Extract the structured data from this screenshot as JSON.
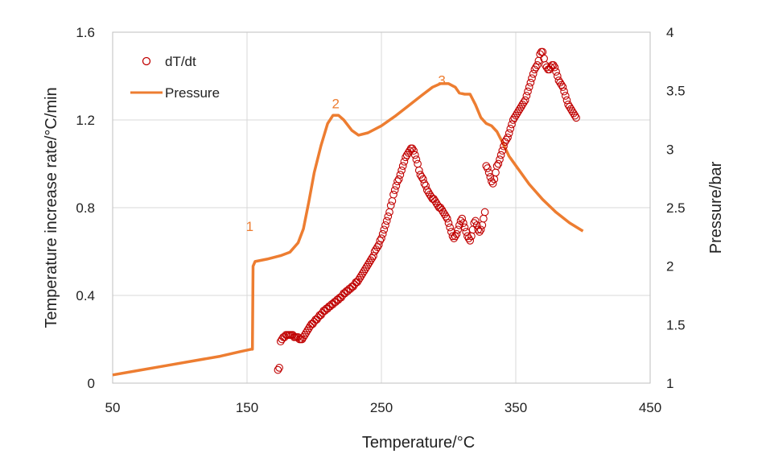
{
  "chart_data": {
    "type": "scatter",
    "xlabel": "Temperature/°C",
    "ylabel_left": "Temperature increase rate/°C/min",
    "ylabel_right": "Pressure/bar",
    "xlim": [
      50,
      450
    ],
    "ylim_left": [
      0,
      1.6
    ],
    "ylim_right": [
      1,
      4
    ],
    "x_ticks": [
      "50",
      "150",
      "250",
      "350",
      "450"
    ],
    "y_left_ticks": [
      "0",
      "0.4",
      "0.8",
      "1.2",
      "1.6"
    ],
    "y_right_ticks": [
      "1",
      "1.5",
      "2",
      "2.5",
      "3",
      "3.5",
      "4"
    ],
    "grid": true,
    "legend": "top-left",
    "colors": {
      "dTdt": "#C00000",
      "pressure": "#ED7D31"
    },
    "annotations": [
      {
        "text": "1",
        "x": 152,
        "y_right": 2.3
      },
      {
        "text": "2",
        "x": 216,
        "y_right": 3.35
      },
      {
        "text": "3",
        "x": 295,
        "y_right": 3.55
      }
    ],
    "series": [
      {
        "name": "dT/dt",
        "kind": "scatter",
        "axis": "left",
        "points": [
          [
            173,
            0.06
          ],
          [
            174,
            0.07
          ],
          [
            175,
            0.19
          ],
          [
            176,
            0.2
          ],
          [
            177,
            0.21
          ],
          [
            178,
            0.21
          ],
          [
            179,
            0.22
          ],
          [
            180,
            0.22
          ],
          [
            181,
            0.22
          ],
          [
            182,
            0.22
          ],
          [
            183,
            0.22
          ],
          [
            184,
            0.22
          ],
          [
            185,
            0.21
          ],
          [
            186,
            0.21
          ],
          [
            187,
            0.21
          ],
          [
            188,
            0.21
          ],
          [
            189,
            0.2
          ],
          [
            190,
            0.2
          ],
          [
            191,
            0.2
          ],
          [
            192,
            0.21
          ],
          [
            193,
            0.22
          ],
          [
            194,
            0.23
          ],
          [
            195,
            0.24
          ],
          [
            196,
            0.25
          ],
          [
            197,
            0.26
          ],
          [
            198,
            0.27
          ],
          [
            199,
            0.27
          ],
          [
            200,
            0.28
          ],
          [
            201,
            0.29
          ],
          [
            202,
            0.29
          ],
          [
            203,
            0.3
          ],
          [
            204,
            0.31
          ],
          [
            205,
            0.31
          ],
          [
            206,
            0.32
          ],
          [
            207,
            0.33
          ],
          [
            208,
            0.33
          ],
          [
            209,
            0.34
          ],
          [
            210,
            0.34
          ],
          [
            211,
            0.35
          ],
          [
            212,
            0.35
          ],
          [
            213,
            0.36
          ],
          [
            214,
            0.36
          ],
          [
            215,
            0.37
          ],
          [
            216,
            0.37
          ],
          [
            217,
            0.38
          ],
          [
            218,
            0.38
          ],
          [
            219,
            0.39
          ],
          [
            220,
            0.39
          ],
          [
            221,
            0.4
          ],
          [
            222,
            0.41
          ],
          [
            223,
            0.41
          ],
          [
            224,
            0.42
          ],
          [
            225,
            0.42
          ],
          [
            226,
            0.43
          ],
          [
            227,
            0.43
          ],
          [
            228,
            0.44
          ],
          [
            229,
            0.44
          ],
          [
            230,
            0.45
          ],
          [
            231,
            0.46
          ],
          [
            232,
            0.46
          ],
          [
            233,
            0.47
          ],
          [
            234,
            0.48
          ],
          [
            235,
            0.49
          ],
          [
            236,
            0.5
          ],
          [
            237,
            0.51
          ],
          [
            238,
            0.52
          ],
          [
            239,
            0.53
          ],
          [
            240,
            0.54
          ],
          [
            241,
            0.55
          ],
          [
            242,
            0.56
          ],
          [
            243,
            0.57
          ],
          [
            244,
            0.58
          ],
          [
            245,
            0.6
          ],
          [
            246,
            0.61
          ],
          [
            247,
            0.62
          ],
          [
            248,
            0.63
          ],
          [
            249,
            0.65
          ],
          [
            250,
            0.66
          ],
          [
            251,
            0.68
          ],
          [
            252,
            0.7
          ],
          [
            253,
            0.72
          ],
          [
            254,
            0.74
          ],
          [
            255,
            0.76
          ],
          [
            256,
            0.78
          ],
          [
            257,
            0.81
          ],
          [
            258,
            0.83
          ],
          [
            259,
            0.86
          ],
          [
            260,
            0.88
          ],
          [
            261,
            0.9
          ],
          [
            262,
            0.92
          ],
          [
            263,
            0.93
          ],
          [
            264,
            0.95
          ],
          [
            265,
            0.97
          ],
          [
            266,
            0.99
          ],
          [
            267,
            1.01
          ],
          [
            268,
            1.03
          ],
          [
            269,
            1.04
          ],
          [
            270,
            1.05
          ],
          [
            271,
            1.06
          ],
          [
            272,
            1.07
          ],
          [
            273,
            1.07
          ],
          [
            274,
            1.06
          ],
          [
            275,
            1.04
          ],
          [
            276,
            1.02
          ],
          [
            277,
            1.0
          ],
          [
            278,
            0.97
          ],
          [
            279,
            0.95
          ],
          [
            280,
            0.94
          ],
          [
            281,
            0.93
          ],
          [
            282,
            0.91
          ],
          [
            283,
            0.9
          ],
          [
            284,
            0.88
          ],
          [
            285,
            0.87
          ],
          [
            286,
            0.86
          ],
          [
            287,
            0.85
          ],
          [
            288,
            0.84
          ],
          [
            289,
            0.84
          ],
          [
            290,
            0.83
          ],
          [
            291,
            0.82
          ],
          [
            292,
            0.81
          ],
          [
            293,
            0.8
          ],
          [
            294,
            0.8
          ],
          [
            295,
            0.79
          ],
          [
            296,
            0.78
          ],
          [
            297,
            0.77
          ],
          [
            298,
            0.76
          ],
          [
            299,
            0.75
          ],
          [
            300,
            0.73
          ],
          [
            301,
            0.71
          ],
          [
            302,
            0.69
          ],
          [
            303,
            0.67
          ],
          [
            304,
            0.66
          ],
          [
            305,
            0.67
          ],
          [
            306,
            0.68
          ],
          [
            307,
            0.7
          ],
          [
            308,
            0.72
          ],
          [
            309,
            0.74
          ],
          [
            310,
            0.75
          ],
          [
            311,
            0.73
          ],
          [
            312,
            0.71
          ],
          [
            313,
            0.69
          ],
          [
            314,
            0.67
          ],
          [
            315,
            0.66
          ],
          [
            316,
            0.65
          ],
          [
            317,
            0.67
          ],
          [
            318,
            0.7
          ],
          [
            319,
            0.73
          ],
          [
            320,
            0.74
          ],
          [
            321,
            0.72
          ],
          [
            322,
            0.7
          ],
          [
            323,
            0.69
          ],
          [
            324,
            0.7
          ],
          [
            325,
            0.72
          ],
          [
            326,
            0.75
          ],
          [
            327,
            0.78
          ],
          [
            328,
            0.99
          ],
          [
            329,
            0.98
          ],
          [
            330,
            0.96
          ],
          [
            331,
            0.94
          ],
          [
            332,
            0.92
          ],
          [
            333,
            0.91
          ],
          [
            334,
            0.93
          ],
          [
            335,
            0.96
          ],
          [
            336,
            0.99
          ],
          [
            337,
            1.0
          ],
          [
            338,
            1.02
          ],
          [
            339,
            1.04
          ],
          [
            340,
            1.06
          ],
          [
            341,
            1.08
          ],
          [
            342,
            1.1
          ],
          [
            343,
            1.11
          ],
          [
            344,
            1.12
          ],
          [
            345,
            1.14
          ],
          [
            346,
            1.16
          ],
          [
            347,
            1.18
          ],
          [
            348,
            1.2
          ],
          [
            349,
            1.21
          ],
          [
            350,
            1.22
          ],
          [
            351,
            1.23
          ],
          [
            352,
            1.24
          ],
          [
            353,
            1.25
          ],
          [
            354,
            1.26
          ],
          [
            355,
            1.27
          ],
          [
            356,
            1.28
          ],
          [
            357,
            1.29
          ],
          [
            358,
            1.31
          ],
          [
            359,
            1.33
          ],
          [
            360,
            1.35
          ],
          [
            361,
            1.37
          ],
          [
            362,
            1.39
          ],
          [
            363,
            1.41
          ],
          [
            364,
            1.43
          ],
          [
            365,
            1.44
          ],
          [
            366,
            1.45
          ],
          [
            367,
            1.47
          ],
          [
            368,
            1.5
          ],
          [
            369,
            1.51
          ],
          [
            370,
            1.51
          ],
          [
            371,
            1.48
          ],
          [
            372,
            1.45
          ],
          [
            373,
            1.44
          ],
          [
            374,
            1.43
          ],
          [
            375,
            1.43
          ],
          [
            376,
            1.44
          ],
          [
            377,
            1.45
          ],
          [
            378,
            1.45
          ],
          [
            379,
            1.44
          ],
          [
            380,
            1.42
          ],
          [
            381,
            1.4
          ],
          [
            382,
            1.38
          ],
          [
            383,
            1.37
          ],
          [
            384,
            1.36
          ],
          [
            385,
            1.35
          ],
          [
            386,
            1.33
          ],
          [
            387,
            1.31
          ],
          [
            388,
            1.29
          ],
          [
            389,
            1.27
          ],
          [
            390,
            1.26
          ],
          [
            391,
            1.25
          ],
          [
            392,
            1.24
          ],
          [
            393,
            1.23
          ],
          [
            394,
            1.22
          ],
          [
            395,
            1.21
          ]
        ]
      },
      {
        "name": "Pressure",
        "kind": "line",
        "axis": "right",
        "points": [
          [
            50,
            1.07
          ],
          [
            70,
            1.11
          ],
          [
            90,
            1.15
          ],
          [
            110,
            1.19
          ],
          [
            130,
            1.23
          ],
          [
            145,
            1.27
          ],
          [
            153,
            1.29
          ],
          [
            154,
            1.29
          ],
          [
            154.5,
            2.0
          ],
          [
            156,
            2.04
          ],
          [
            165,
            2.06
          ],
          [
            175,
            2.09
          ],
          [
            182,
            2.12
          ],
          [
            188,
            2.2
          ],
          [
            192,
            2.32
          ],
          [
            196,
            2.55
          ],
          [
            200,
            2.8
          ],
          [
            205,
            3.03
          ],
          [
            210,
            3.22
          ],
          [
            214,
            3.29
          ],
          [
            218,
            3.29
          ],
          [
            222,
            3.25
          ],
          [
            228,
            3.16
          ],
          [
            233,
            3.12
          ],
          [
            240,
            3.14
          ],
          [
            250,
            3.2
          ],
          [
            260,
            3.28
          ],
          [
            270,
            3.37
          ],
          [
            280,
            3.46
          ],
          [
            288,
            3.53
          ],
          [
            294,
            3.56
          ],
          [
            300,
            3.56
          ],
          [
            305,
            3.53
          ],
          [
            308,
            3.48
          ],
          [
            312,
            3.47
          ],
          [
            316,
            3.47
          ],
          [
            320,
            3.38
          ],
          [
            324,
            3.27
          ],
          [
            328,
            3.22
          ],
          [
            332,
            3.2
          ],
          [
            336,
            3.15
          ],
          [
            340,
            3.06
          ],
          [
            345,
            2.94
          ],
          [
            350,
            2.86
          ],
          [
            360,
            2.7
          ],
          [
            370,
            2.57
          ],
          [
            380,
            2.46
          ],
          [
            390,
            2.37
          ],
          [
            400,
            2.3
          ]
        ]
      }
    ]
  }
}
